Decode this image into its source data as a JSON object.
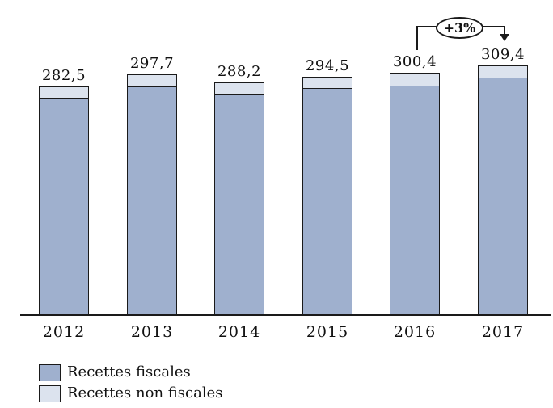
{
  "chart_data": {
    "type": "bar",
    "stacked": true,
    "title": "",
    "xlabel": "",
    "ylabel": "",
    "categories": [
      "2012",
      "2013",
      "2014",
      "2015",
      "2016",
      "2017"
    ],
    "series": [
      {
        "name": "Recettes fiscales",
        "color": "#9fb0ce",
        "values": [
          268.5,
          282.7,
          274.2,
          280.5,
          284.4,
          294.4
        ]
      },
      {
        "name": "Recettes non fiscales",
        "color": "#dce3ee",
        "values": [
          14.0,
          15.0,
          14.0,
          14.0,
          16.0,
          15.0
        ]
      }
    ],
    "totals": [
      282.5,
      297.7,
      288.2,
      294.5,
      300.4,
      309.4
    ],
    "total_labels": [
      "282,5",
      "297,7",
      "288,2",
      "294,5",
      "300,4",
      "309,4"
    ],
    "ylim": [
      0,
      390
    ],
    "grid": false,
    "legend_position": "bottom-left",
    "annotation": {
      "label": "+3%",
      "from_category": "2016",
      "to_category": "2017"
    }
  },
  "legend": {
    "items": [
      {
        "label": "Recettes fiscales"
      },
      {
        "label": "Recettes non fiscales"
      }
    ]
  },
  "colors": {
    "fiscal_fill": "#9fb0ce",
    "non_fiscal_fill": "#dce3ee",
    "outline": "#1a1a1a",
    "background": "#ffffff"
  }
}
